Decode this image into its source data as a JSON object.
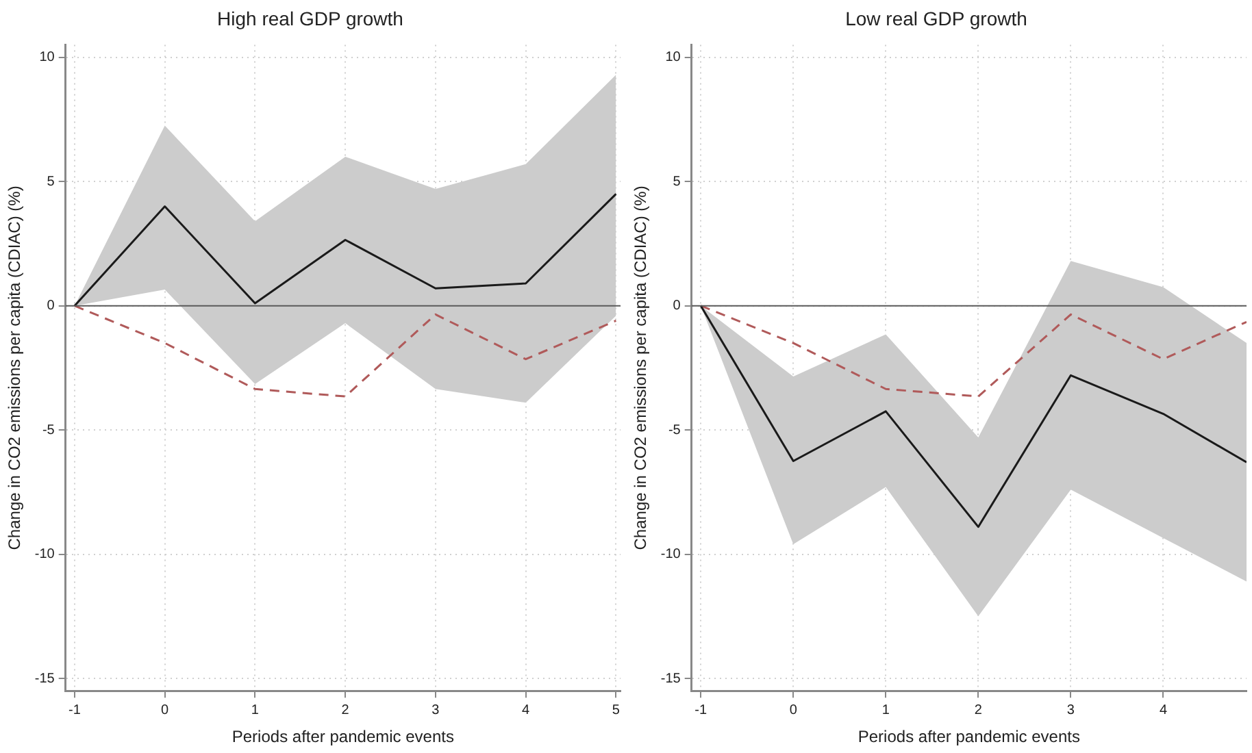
{
  "chart_data": [
    {
      "type": "line",
      "title": "High real GDP growth",
      "xlabel": "Periods after pandemic events",
      "ylabel": "Change in CO2 emissions per capita (CDIAC) (%)",
      "x": [
        -1,
        0,
        1,
        2,
        3,
        4,
        5
      ],
      "xlim": [
        -1.1,
        5.05
      ],
      "xticks": [
        -1,
        0,
        1,
        2,
        3,
        4,
        5
      ],
      "ylim": [
        -15.5,
        10.5
      ],
      "yticks": [
        -15,
        -10,
        -5,
        0,
        5,
        10
      ],
      "grid": true,
      "marker": "none",
      "legend": false,
      "ref_lines": [
        {
          "axis": "y",
          "value": 0,
          "color": "#5a5a5a"
        }
      ],
      "series": [
        {
          "color": "#1a1a1a",
          "line_style": "solid",
          "values": [
            0,
            4.0,
            0.1,
            2.65,
            0.7,
            0.9,
            4.5
          ],
          "lower": [
            0,
            0.65,
            -3.15,
            -0.7,
            -3.35,
            -3.9,
            -0.4
          ],
          "upper": [
            0,
            7.25,
            3.4,
            6.0,
            4.7,
            5.7,
            9.3
          ]
        },
        {
          "color": "#b05a5a",
          "line_style": "dashed",
          "values": [
            0,
            -1.5,
            -3.35,
            -3.65,
            -0.35,
            -2.15,
            -0.6
          ]
        }
      ]
    },
    {
      "type": "line",
      "title": "Low real GDP growth",
      "xlabel": "Periods after pandemic events",
      "ylabel": "Change in CO2 emissions per capita (CDIAC) (%)",
      "x": [
        -1,
        0,
        1,
        2,
        3,
        4,
        4.9
      ],
      "xlim": [
        -1.1,
        4.9
      ],
      "xticks": [
        -1,
        0,
        1,
        2,
        3,
        4
      ],
      "ylim": [
        -15.5,
        10.5
      ],
      "yticks": [
        -15,
        -10,
        -5,
        0,
        5,
        10
      ],
      "grid": true,
      "marker": "none",
      "legend": false,
      "ref_lines": [
        {
          "axis": "y",
          "value": 0,
          "color": "#5a5a5a"
        }
      ],
      "series": [
        {
          "color": "#1a1a1a",
          "line_style": "solid",
          "values": [
            0,
            -6.25,
            -4.25,
            -8.9,
            -2.8,
            -4.35,
            -6.3
          ],
          "lower": [
            0,
            -9.6,
            -7.3,
            -12.5,
            -7.4,
            -9.35,
            -11.1
          ],
          "upper": [
            0,
            -2.85,
            -1.15,
            -5.3,
            1.8,
            0.75,
            -1.5
          ]
        },
        {
          "color": "#b05a5a",
          "line_style": "dashed",
          "values": [
            0,
            -1.5,
            -3.35,
            -3.65,
            -0.35,
            -2.15,
            -0.65
          ]
        }
      ]
    }
  ]
}
